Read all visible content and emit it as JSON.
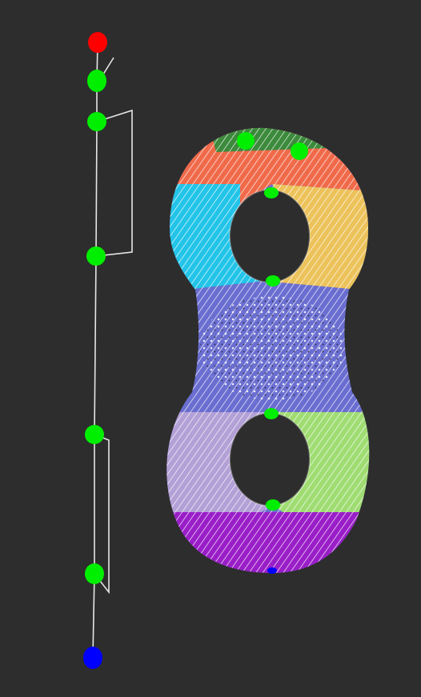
{
  "scene": {
    "background": "#2d2d2d",
    "line_color": "#e6e6e6",
    "node_colors": {
      "root": "#ff0000",
      "interior": "#00ee00",
      "leaf": "#0000ff"
    },
    "tree_nodes": [
      {
        "id": "root",
        "kind": "root"
      },
      {
        "id": "n1",
        "kind": "interior"
      },
      {
        "id": "n2",
        "kind": "interior"
      },
      {
        "id": "n3",
        "kind": "interior"
      },
      {
        "id": "n4",
        "kind": "interior"
      },
      {
        "id": "n5",
        "kind": "interior"
      },
      {
        "id": "leaf",
        "kind": "leaf"
      }
    ],
    "surface_patches": [
      {
        "name": "top-cap",
        "color": "#3c8a3c"
      },
      {
        "name": "top-left",
        "color": "#f06a4a"
      },
      {
        "name": "left-upper",
        "color": "#22c4e8"
      },
      {
        "name": "right-upper",
        "color": "#ecc25a"
      },
      {
        "name": "middle",
        "color": "#6a6ed0"
      },
      {
        "name": "left-lower",
        "color": "#b3a0d6"
      },
      {
        "name": "right-lower",
        "color": "#9fdc72"
      },
      {
        "name": "bottom",
        "color": "#9a1ec8"
      }
    ]
  }
}
